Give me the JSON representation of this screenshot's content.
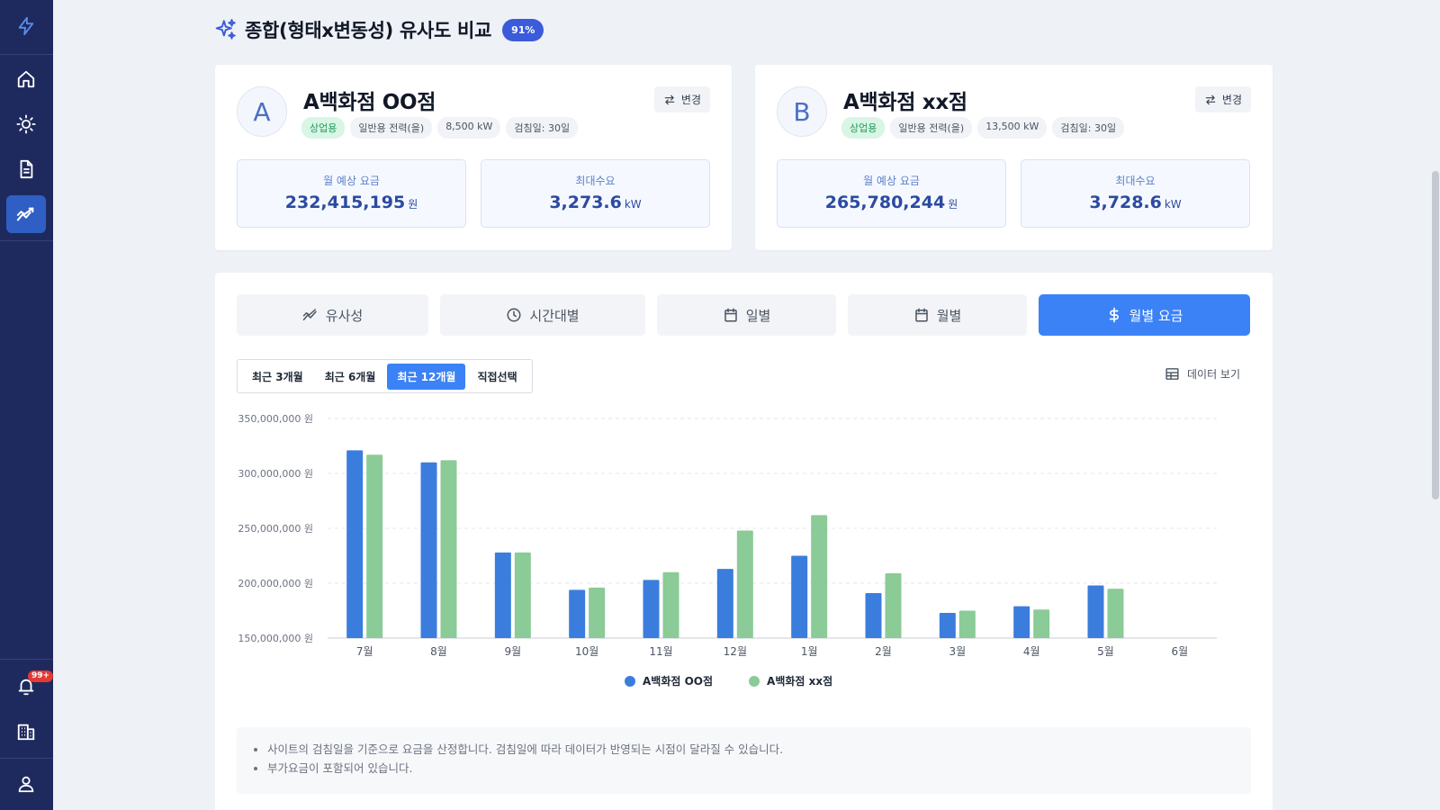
{
  "sidebar": {
    "logo_icon": "lightning-icon",
    "items": [
      {
        "icon": "home-icon"
      },
      {
        "icon": "sun-icon"
      },
      {
        "icon": "document-icon"
      },
      {
        "icon": "trend-chart-icon",
        "active": true
      }
    ],
    "bottom_items": [
      {
        "icon": "notification-bell-icon",
        "badge": "99+"
      },
      {
        "icon": "building-icon"
      },
      {
        "icon": "user-icon"
      }
    ]
  },
  "header": {
    "title": "종합(형태x변동성) 유사도 비교",
    "match_badge": "91%"
  },
  "site_a": {
    "avatar": "A",
    "name": "A백화점 OO점",
    "tags": [
      "상업용",
      "일반용 전력(을)",
      "8,500 kW",
      "검침일: 30일"
    ],
    "change_label": "변경",
    "monthly_fee_label": "월 예상 요금",
    "monthly_fee_value": "232,415,195",
    "monthly_fee_unit": "원",
    "peak_label": "최대수요",
    "peak_value": "3,273.6",
    "peak_unit": "kW"
  },
  "site_b": {
    "avatar": "B",
    "name": "A백화점 xx점",
    "tags": [
      "상업용",
      "일반용 전력(을)",
      "13,500 kW",
      "검침일: 30일"
    ],
    "change_label": "변경",
    "monthly_fee_label": "월 예상 요금",
    "monthly_fee_value": "265,780,244",
    "monthly_fee_unit": "원",
    "peak_label": "최대수요",
    "peak_value": "3,728.6",
    "peak_unit": "kW"
  },
  "tabs": [
    {
      "label": "유사성",
      "icon": "trend-icon"
    },
    {
      "label": "시간대별",
      "icon": "clock-icon"
    },
    {
      "label": "일별",
      "icon": "calendar-icon"
    },
    {
      "label": "월별",
      "icon": "calendar-icon"
    },
    {
      "label": "월별 요금",
      "icon": "dollar-icon",
      "active": true
    }
  ],
  "periods": [
    {
      "label": "최근 3개월"
    },
    {
      "label": "최근 6개월"
    },
    {
      "label": "최근 12개월",
      "active": true
    },
    {
      "label": "직접선택"
    }
  ],
  "data_view_label": "데이터 보기",
  "chart_data": {
    "type": "bar",
    "categories": [
      "7월",
      "8월",
      "9월",
      "10월",
      "11월",
      "12월",
      "1월",
      "2월",
      "3월",
      "4월",
      "5월",
      "6월"
    ],
    "series": [
      {
        "name": "A백화점 OO점",
        "color": "#3b7ddd",
        "values": [
          321000000,
          310000000,
          228000000,
          194000000,
          203000000,
          213000000,
          225000000,
          191000000,
          173000000,
          179000000,
          198000000,
          null
        ]
      },
      {
        "name": "A백화점 xx점",
        "color": "#8acb97",
        "values": [
          317000000,
          312000000,
          228000000,
          196000000,
          210000000,
          248000000,
          262000000,
          209000000,
          175000000,
          176000000,
          195000000,
          null
        ]
      }
    ],
    "ylim": [
      150000000,
      350000000
    ],
    "yticks": [
      "350,000,000 원",
      "300,000,000 원",
      "250,000,000 원",
      "200,000,000 원",
      "150,000,000 원"
    ],
    "ytick_values": [
      350000000,
      300000000,
      250000000,
      200000000,
      150000000
    ],
    "grid": true,
    "legend": "bottom"
  },
  "notes": [
    "사이트의 검침일을 기준으로 요금을 산정합니다. 검침일에 따라 데이터가 반영되는 시점이 달라질 수 있습니다.",
    "부가요금이 포함되어 있습니다."
  ]
}
